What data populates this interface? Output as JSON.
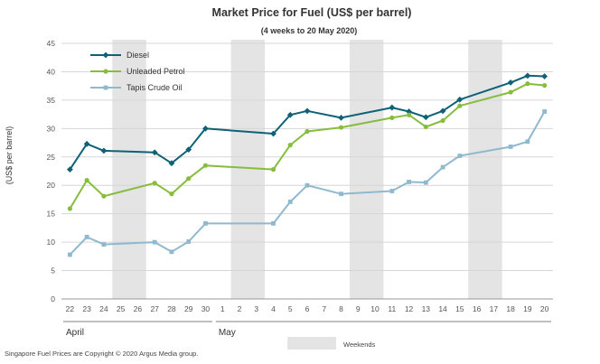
{
  "chart_data": {
    "type": "line",
    "title": "Market Price for Fuel (US$ per barrel)",
    "subtitle": "(4 weeks to 20 May 2020)",
    "ylabel": "(US$ per barrel)",
    "xlabel": "",
    "ylim": [
      0,
      45
    ],
    "yticks": [
      0,
      5,
      10,
      15,
      20,
      25,
      30,
      35,
      40,
      45
    ],
    "grid": true,
    "legend_position": "top-left",
    "categories": [
      "22",
      "23",
      "24",
      "25",
      "26",
      "27",
      "28",
      "29",
      "30",
      "1",
      "2",
      "3",
      "4",
      "5",
      "6",
      "7",
      "8",
      "9",
      "10",
      "11",
      "12",
      "13",
      "14",
      "15",
      "16",
      "17",
      "18",
      "19",
      "20"
    ],
    "months": [
      {
        "label": "April",
        "start": "22",
        "end": "30"
      },
      {
        "label": "May",
        "start": "1",
        "end": "20"
      }
    ],
    "weekend_bands": [
      [
        "25",
        "26"
      ],
      [
        "2",
        "3"
      ],
      [
        "9",
        "10"
      ],
      [
        "16",
        "17"
      ]
    ],
    "weekend_label": "Weekends",
    "series": [
      {
        "name": "Diesel",
        "color": "#0e6177",
        "marker": "diamond",
        "values": [
          22.8,
          27.3,
          26.1,
          null,
          null,
          25.8,
          23.9,
          26.3,
          30.0,
          null,
          null,
          null,
          29.1,
          32.4,
          33.1,
          null,
          31.9,
          null,
          null,
          33.7,
          33.0,
          32.0,
          33.1,
          35.1,
          null,
          null,
          38.1,
          39.3,
          39.2
        ]
      },
      {
        "name": "Unleaded Petrol",
        "color": "#86bd3c",
        "marker": "circle",
        "values": [
          15.9,
          20.9,
          18.1,
          null,
          null,
          20.4,
          18.5,
          21.2,
          23.5,
          null,
          null,
          null,
          22.8,
          27.1,
          29.5,
          null,
          30.2,
          null,
          null,
          31.9,
          32.4,
          30.3,
          31.4,
          34.0,
          null,
          null,
          36.4,
          37.9,
          37.6
        ]
      },
      {
        "name": "Tapis Crude Oil",
        "color": "#8fb9cf",
        "marker": "square",
        "values": [
          7.8,
          10.9,
          9.6,
          null,
          null,
          10.0,
          8.3,
          10.1,
          13.3,
          null,
          null,
          null,
          13.3,
          17.1,
          20.0,
          null,
          18.5,
          null,
          null,
          19.0,
          20.6,
          20.5,
          23.2,
          25.2,
          null,
          null,
          26.8,
          27.7,
          33.0
        ]
      }
    ]
  },
  "footer": "Singapore Fuel Prices are Copyright © 2020 Argus Media group."
}
